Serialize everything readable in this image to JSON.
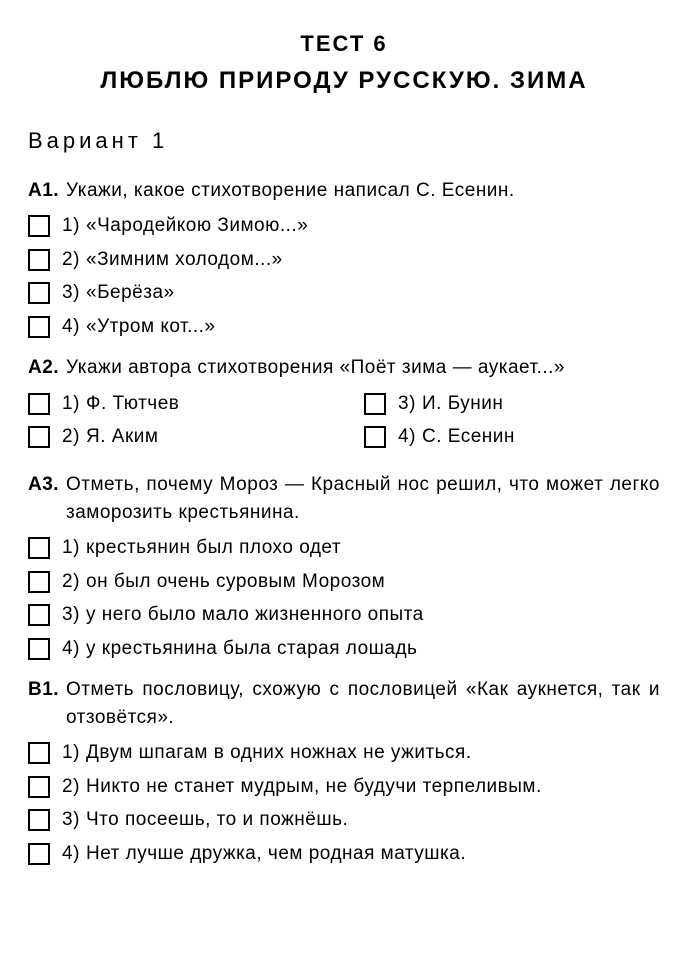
{
  "test_title": "ТЕСТ 6",
  "test_subtitle": "ЛЮБЛЮ ПРИРОДУ РУССКУЮ. ЗИМА",
  "variant": "Вариант 1",
  "q1": {
    "id": "А1.",
    "text": "Укажи, какое стихотворение написал С. Есенин.",
    "opts": {
      "1": {
        "n": "1)",
        "t": "«Чародейкою Зимою...»"
      },
      "2": {
        "n": "2)",
        "t": "«Зимним холодом...»"
      },
      "3": {
        "n": "3)",
        "t": "«Берёза»"
      },
      "4": {
        "n": "4)",
        "t": "«Утром кот...»"
      }
    }
  },
  "q2": {
    "id": "А2.",
    "text": "Укажи автора стихотворения «Поёт зима — аука­ет...»",
    "opts": {
      "1": {
        "n": "1)",
        "t": "Ф. Тютчев"
      },
      "2": {
        "n": "2)",
        "t": "Я. Аким"
      },
      "3": {
        "n": "3)",
        "t": "И. Бунин"
      },
      "4": {
        "n": "4)",
        "t": "С. Есенин"
      }
    }
  },
  "q3": {
    "id": "А3.",
    "text": "Отметь, почему Мороз — Красный нос решил, что может легко заморозить крестьянина.",
    "opts": {
      "1": {
        "n": "1)",
        "t": "крестьянин был плохо одет"
      },
      "2": {
        "n": "2)",
        "t": "он был очень суровым Морозом"
      },
      "3": {
        "n": "3)",
        "t": "у него было мало жизненного опыта"
      },
      "4": {
        "n": "4)",
        "t": "у крестьянина была старая лошадь"
      }
    }
  },
  "q4": {
    "id": "В1.",
    "text": "Отметь пословицу, схожую с пословицей «Как аукнется, так и отзовётся».",
    "opts": {
      "1": {
        "n": "1)",
        "t": "Двум шпагам в одних ножнах не ужиться."
      },
      "2": {
        "n": "2)",
        "t": "Никто не станет мудрым, не будучи терпели­вым."
      },
      "3": {
        "n": "3)",
        "t": "Что посеешь, то и пожнёшь."
      },
      "4": {
        "n": "4)",
        "t": "Нет лучше дружка, чем родная матушка."
      }
    }
  }
}
